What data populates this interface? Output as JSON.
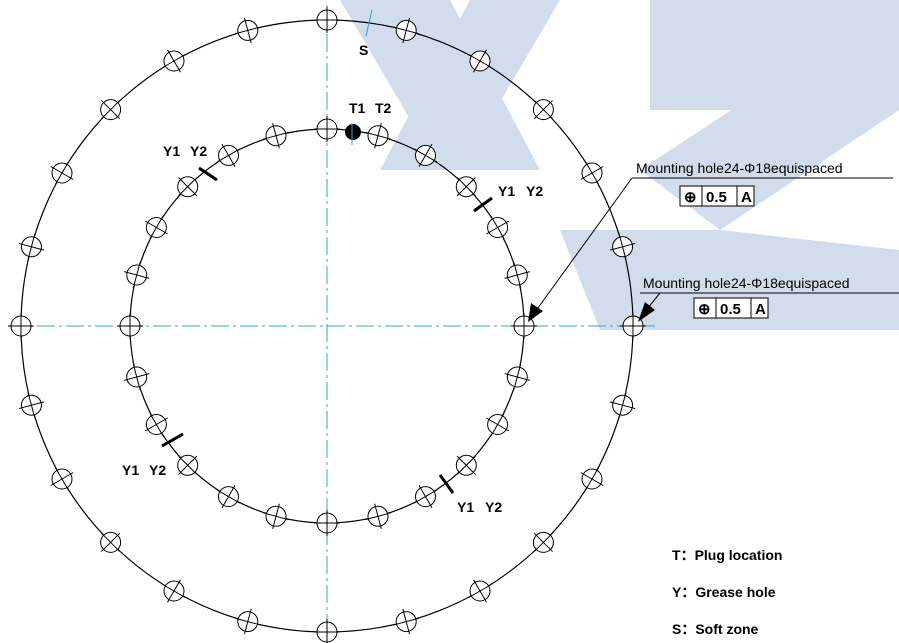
{
  "watermark": {
    "text": "XZ",
    "color": "#c9d6ea"
  },
  "colors": {
    "line": "#000000",
    "center_line": "#2aa6dc"
  },
  "outer_circle": {
    "hole_count": 24
  },
  "inner_circle": {
    "hole_count": 24
  },
  "labels": {
    "soft_zone_mark": "S",
    "plug_t1": "T1",
    "plug_t2": "T2",
    "grease_y1": "Y1",
    "grease_y2": "Y2"
  },
  "callouts": [
    {
      "text": "Mounting  hole24-Φ18equispaced",
      "fcf": {
        "symbol": "⊕",
        "tolerance": "0.5",
        "datum": "A"
      }
    },
    {
      "text": "Mounting  hole24-Φ18equispaced",
      "fcf": {
        "symbol": "⊕",
        "tolerance": "0.5",
        "datum": "A"
      }
    }
  ],
  "legend": [
    {
      "key": "T",
      "desc": "Plug location"
    },
    {
      "key": "Y",
      "desc": "Grease hole"
    },
    {
      "key": "S",
      "desc": "Soft zone"
    }
  ]
}
